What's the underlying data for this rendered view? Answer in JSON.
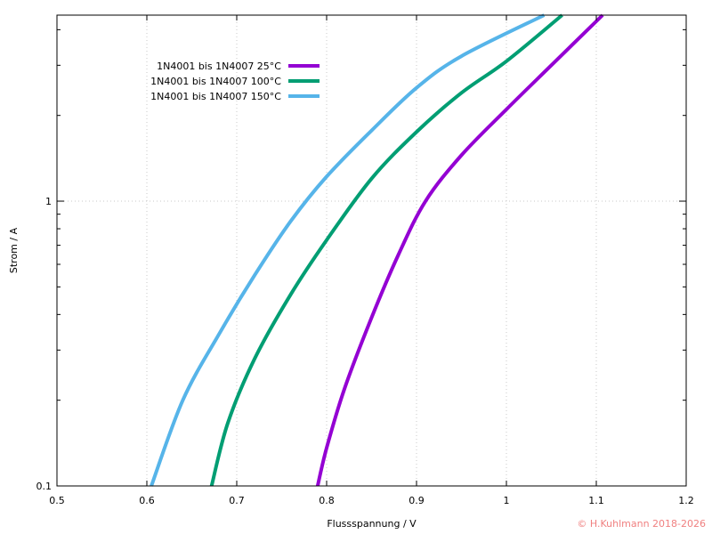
{
  "chart_data": {
    "type": "line",
    "title": "",
    "xlabel": "Flussspannung / V",
    "ylabel": "Strom / A",
    "xlim": [
      0.5,
      1.2
    ],
    "ylim": [
      0.1,
      4.5
    ],
    "yscale": "log",
    "grid": true,
    "legend_position": "top-left",
    "x_ticks": [
      0.5,
      0.6,
      0.7,
      0.8,
      0.9,
      1,
      1.1,
      1.2
    ],
    "x_tick_labels": [
      "0.5",
      "0.6",
      "0.7",
      "0.8",
      "0.9",
      "1",
      "1.1",
      "1.2"
    ],
    "y_major_ticks": [
      0.1,
      1
    ],
    "y_tick_labels": [
      "0.1",
      "1"
    ],
    "y_minor_ticks": [
      0.2,
      0.3,
      0.4,
      0.5,
      0.6,
      0.7,
      0.8,
      0.9,
      2,
      3,
      4
    ],
    "series": [
      {
        "name": "1N4001 bis 1N4007 25°C",
        "color": "#9400d3",
        "points": [
          [
            0.79,
            0.1
          ],
          [
            0.8,
            0.136
          ],
          [
            0.82,
            0.22
          ],
          [
            0.85,
            0.39
          ],
          [
            0.88,
            0.65
          ],
          [
            0.91,
            1.0
          ],
          [
            0.95,
            1.45
          ],
          [
            1.0,
            2.1
          ],
          [
            1.05,
            3.0
          ],
          [
            1.107,
            4.5
          ]
        ]
      },
      {
        "name": "1N4001 bis 1N4007 100°C",
        "color": "#009e73",
        "points": [
          [
            0.672,
            0.1
          ],
          [
            0.69,
            0.166
          ],
          [
            0.72,
            0.28
          ],
          [
            0.76,
            0.47
          ],
          [
            0.8,
            0.73
          ],
          [
            0.85,
            1.2
          ],
          [
            0.9,
            1.75
          ],
          [
            0.95,
            2.4
          ],
          [
            1.0,
            3.1
          ],
          [
            1.062,
            4.5
          ]
        ]
      },
      {
        "name": "1N4001 bis 1N4007 150°C",
        "color": "#56b4e9",
        "points": [
          [
            0.605,
            0.1
          ],
          [
            0.64,
            0.2
          ],
          [
            0.68,
            0.34
          ],
          [
            0.72,
            0.55
          ],
          [
            0.76,
            0.85
          ],
          [
            0.8,
            1.22
          ],
          [
            0.85,
            1.77
          ],
          [
            0.9,
            2.5
          ],
          [
            0.95,
            3.23
          ],
          [
            1.042,
            4.5
          ]
        ]
      }
    ],
    "annotations": [
      "© H.Kuhlmann 2018-2026"
    ]
  },
  "colors": {
    "copyright": "#f08080",
    "grid": "#c8c8c8",
    "axis": "#000000"
  }
}
